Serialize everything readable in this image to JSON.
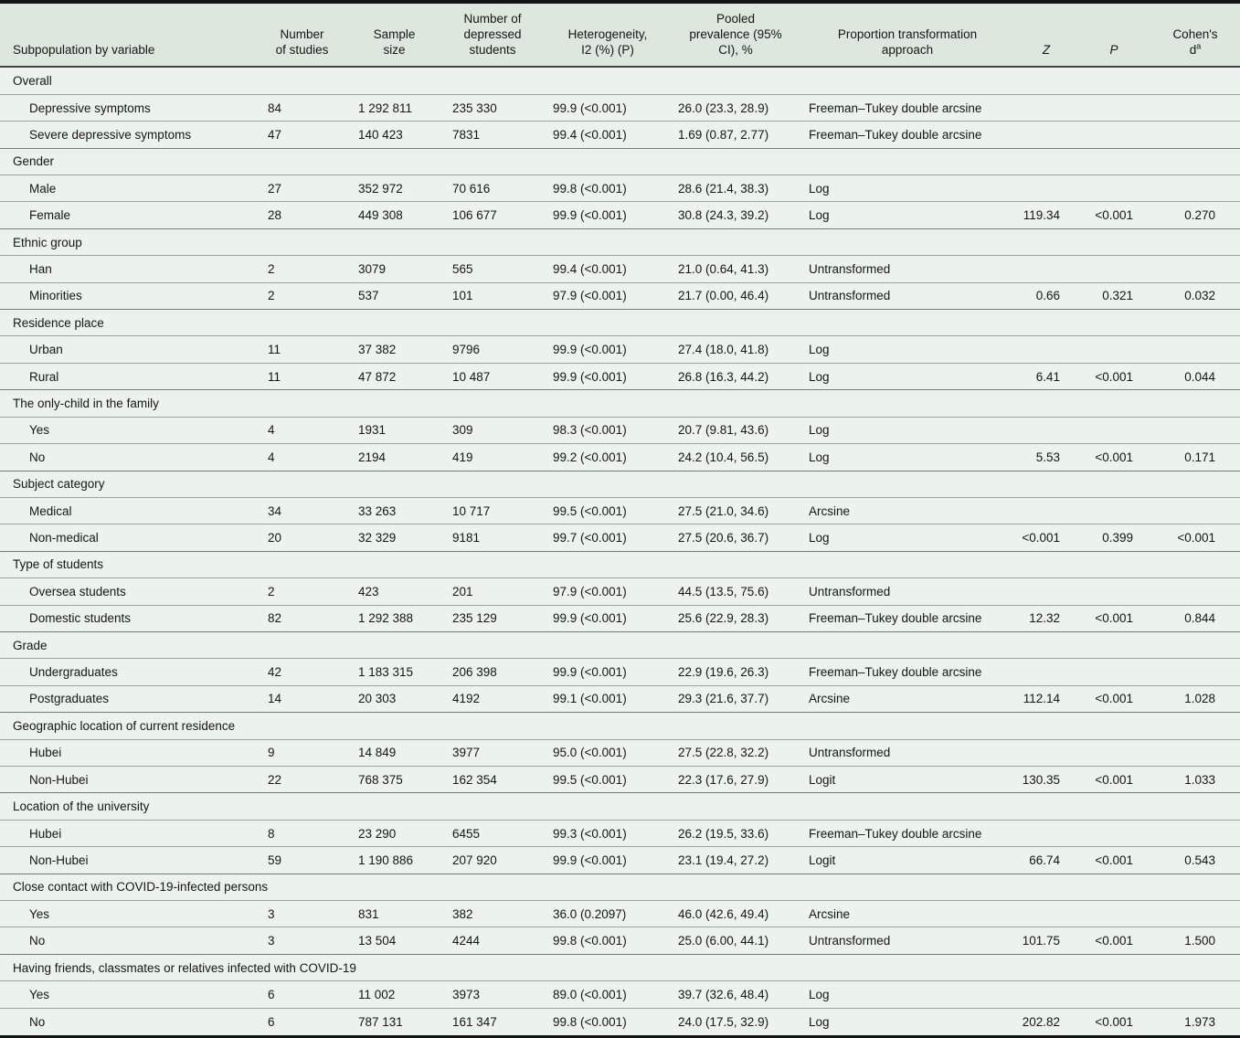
{
  "table": {
    "header": {
      "subpopulation": "Subpopulation by variable",
      "studies": "Number\nof studies",
      "sample": "Sample\nsize",
      "depressed": "Number of\ndepressed\nstudents",
      "heterogeneity": "Heterogeneity,\nI2 (%) (P)",
      "prevalence": "Pooled\nprevalence (95%\nCI), %",
      "approach": "Proportion transformation\napproach",
      "z": "Z",
      "p": "P",
      "cohens_line1": "Cohen's",
      "cohens_d": "d",
      "cohens_sup": "a"
    },
    "colors": {
      "header_background": "#dde7de",
      "body_background": "#ecf2ed",
      "row_line": "#9aa39c",
      "section_line": "#747c76",
      "frame_border": "#141414",
      "text": "#161616"
    },
    "sections": [
      {
        "label": "Overall",
        "rows": [
          {
            "name": "Depressive symptoms",
            "studies": "84",
            "sample": "1 292 811",
            "depressed": "235 330",
            "heterogeneity": "99.9 (<0.001)",
            "prevalence": "26.0 (23.3, 28.9)",
            "approach": "Freeman–Tukey double arcsine",
            "z": "",
            "p": "",
            "d": ""
          },
          {
            "name": "Severe depressive symptoms",
            "studies": "47",
            "sample": "140 423",
            "depressed": "7831",
            "heterogeneity": "99.4 (<0.001)",
            "prevalence": "1.69 (0.87, 2.77)",
            "approach": "Freeman–Tukey double arcsine",
            "z": "",
            "p": "",
            "d": ""
          }
        ]
      },
      {
        "label": "Gender",
        "rows": [
          {
            "name": "Male",
            "studies": "27",
            "sample": "352 972",
            "depressed": "70 616",
            "heterogeneity": "99.8 (<0.001)",
            "prevalence": "28.6 (21.4, 38.3)",
            "approach": "Log",
            "z": "",
            "p": "",
            "d": ""
          },
          {
            "name": "Female",
            "studies": "28",
            "sample": "449 308",
            "depressed": "106 677",
            "heterogeneity": "99.9 (<0.001)",
            "prevalence": "30.8 (24.3, 39.2)",
            "approach": "Log",
            "z": "119.34",
            "p": "<0.001",
            "d": "0.270"
          }
        ]
      },
      {
        "label": "Ethnic group",
        "rows": [
          {
            "name": "Han",
            "studies": "2",
            "sample": "3079",
            "depressed": "565",
            "heterogeneity": "99.4 (<0.001)",
            "prevalence": "21.0 (0.64, 41.3)",
            "approach": "Untransformed",
            "z": "",
            "p": "",
            "d": ""
          },
          {
            "name": "Minorities",
            "studies": "2",
            "sample": "537",
            "depressed": "101",
            "heterogeneity": "97.9 (<0.001)",
            "prevalence": "21.7 (0.00, 46.4)",
            "approach": "Untransformed",
            "z": "0.66",
            "p": "0.321",
            "d": "0.032"
          }
        ]
      },
      {
        "label": "Residence place",
        "rows": [
          {
            "name": "Urban",
            "studies": "11",
            "sample": "37 382",
            "depressed": "9796",
            "heterogeneity": "99.9 (<0.001)",
            "prevalence": "27.4 (18.0, 41.8)",
            "approach": "Log",
            "z": "",
            "p": "",
            "d": ""
          },
          {
            "name": "Rural",
            "studies": "11",
            "sample": "47 872",
            "depressed": "10 487",
            "heterogeneity": "99.9 (<0.001)",
            "prevalence": "26.8 (16.3, 44.2)",
            "approach": "Log",
            "z": "6.41",
            "p": "<0.001",
            "d": "0.044"
          }
        ]
      },
      {
        "label": "The only-child in the family",
        "rows": [
          {
            "name": "Yes",
            "studies": "4",
            "sample": "1931",
            "depressed": "309",
            "heterogeneity": "98.3 (<0.001)",
            "prevalence": "20.7 (9.81, 43.6)",
            "approach": "Log",
            "z": "",
            "p": "",
            "d": ""
          },
          {
            "name": "No",
            "studies": "4",
            "sample": "2194",
            "depressed": "419",
            "heterogeneity": "99.2 (<0.001)",
            "prevalence": "24.2 (10.4, 56.5)",
            "approach": "Log",
            "z": "5.53",
            "p": "<0.001",
            "d": "0.171"
          }
        ]
      },
      {
        "label": "Subject category",
        "rows": [
          {
            "name": "Medical",
            "studies": "34",
            "sample": "33 263",
            "depressed": "10 717",
            "heterogeneity": "99.5 (<0.001)",
            "prevalence": "27.5 (21.0, 34.6)",
            "approach": "Arcsine",
            "z": "",
            "p": "",
            "d": ""
          },
          {
            "name": "Non-medical",
            "studies": "20",
            "sample": "32 329",
            "depressed": "9181",
            "heterogeneity": "99.7 (<0.001)",
            "prevalence": "27.5 (20.6, 36.7)",
            "approach": "Log",
            "z": "<0.001",
            "p": "0.399",
            "d": "<0.001"
          }
        ]
      },
      {
        "label": "Type of students",
        "rows": [
          {
            "name": "Oversea students",
            "studies": "2",
            "sample": "423",
            "depressed": "201",
            "heterogeneity": "97.9 (<0.001)",
            "prevalence": "44.5 (13.5, 75.6)",
            "approach": "Untransformed",
            "z": "",
            "p": "",
            "d": ""
          },
          {
            "name": "Domestic students",
            "studies": "82",
            "sample": "1 292 388",
            "depressed": "235 129",
            "heterogeneity": "99.9 (<0.001)",
            "prevalence": "25.6 (22.9, 28.3)",
            "approach": "Freeman–Tukey double arcsine",
            "z": "12.32",
            "p": "<0.001",
            "d": "0.844"
          }
        ]
      },
      {
        "label": "Grade",
        "rows": [
          {
            "name": "Undergraduates",
            "studies": "42",
            "sample": "1 183 315",
            "depressed": "206 398",
            "heterogeneity": "99.9 (<0.001)",
            "prevalence": "22.9 (19.6, 26.3)",
            "approach": "Freeman–Tukey double arcsine",
            "z": "",
            "p": "",
            "d": ""
          },
          {
            "name": "Postgraduates",
            "studies": "14",
            "sample": "20 303",
            "depressed": "4192",
            "heterogeneity": "99.1 (<0.001)",
            "prevalence": "29.3 (21.6, 37.7)",
            "approach": "Arcsine",
            "z": "112.14",
            "p": "<0.001",
            "d": "1.028"
          }
        ]
      },
      {
        "label": "Geographic location of current residence",
        "rows": [
          {
            "name": "Hubei",
            "studies": "9",
            "sample": "14 849",
            "depressed": "3977",
            "heterogeneity": "95.0 (<0.001)",
            "prevalence": "27.5 (22.8, 32.2)",
            "approach": "Untransformed",
            "z": "",
            "p": "",
            "d": ""
          },
          {
            "name": "Non-Hubei",
            "studies": "22",
            "sample": "768 375",
            "depressed": "162 354",
            "heterogeneity": "99.5 (<0.001)",
            "prevalence": "22.3 (17.6, 27.9)",
            "approach": "Logit",
            "z": "130.35",
            "p": "<0.001",
            "d": "1.033"
          }
        ]
      },
      {
        "label": "Location of the university",
        "rows": [
          {
            "name": "Hubei",
            "studies": "8",
            "sample": "23 290",
            "depressed": "6455",
            "heterogeneity": "99.3 (<0.001)",
            "prevalence": "26.2 (19.5, 33.6)",
            "approach": "Freeman–Tukey double arcsine",
            "z": "",
            "p": "",
            "d": ""
          },
          {
            "name": "Non-Hubei",
            "studies": "59",
            "sample": "1 190 886",
            "depressed": "207 920",
            "heterogeneity": "99.9 (<0.001)",
            "prevalence": "23.1 (19.4, 27.2)",
            "approach": "Logit",
            "z": "66.74",
            "p": "<0.001",
            "d": "0.543"
          }
        ]
      },
      {
        "label": "Close contact with COVID-19-infected persons",
        "rows": [
          {
            "name": "Yes",
            "studies": "3",
            "sample": "831",
            "depressed": "382",
            "heterogeneity": "36.0 (0.2097)",
            "prevalence": "46.0 (42.6, 49.4)",
            "approach": "Arcsine",
            "z": "",
            "p": "",
            "d": ""
          },
          {
            "name": "No",
            "studies": "3",
            "sample": "13 504",
            "depressed": "4244",
            "heterogeneity": "99.8 (<0.001)",
            "prevalence": "25.0 (6.00, 44.1)",
            "approach": "Untransformed",
            "z": "101.75",
            "p": "<0.001",
            "d": "1.500"
          }
        ]
      },
      {
        "label": "Having friends, classmates or relatives infected with COVID-19",
        "rows": [
          {
            "name": "Yes",
            "studies": "6",
            "sample": "11 002",
            "depressed": "3973",
            "heterogeneity": "89.0 (<0.001)",
            "prevalence": "39.7 (32.6, 48.4)",
            "approach": "Log",
            "z": "",
            "p": "",
            "d": ""
          },
          {
            "name": "No",
            "studies": "6",
            "sample": "787 131",
            "depressed": "161 347",
            "heterogeneity": "99.8 (<0.001)",
            "prevalence": "24.0 (17.5, 32.9)",
            "approach": "Log",
            "z": "202.82",
            "p": "<0.001",
            "d": "1.973"
          }
        ]
      }
    ]
  }
}
